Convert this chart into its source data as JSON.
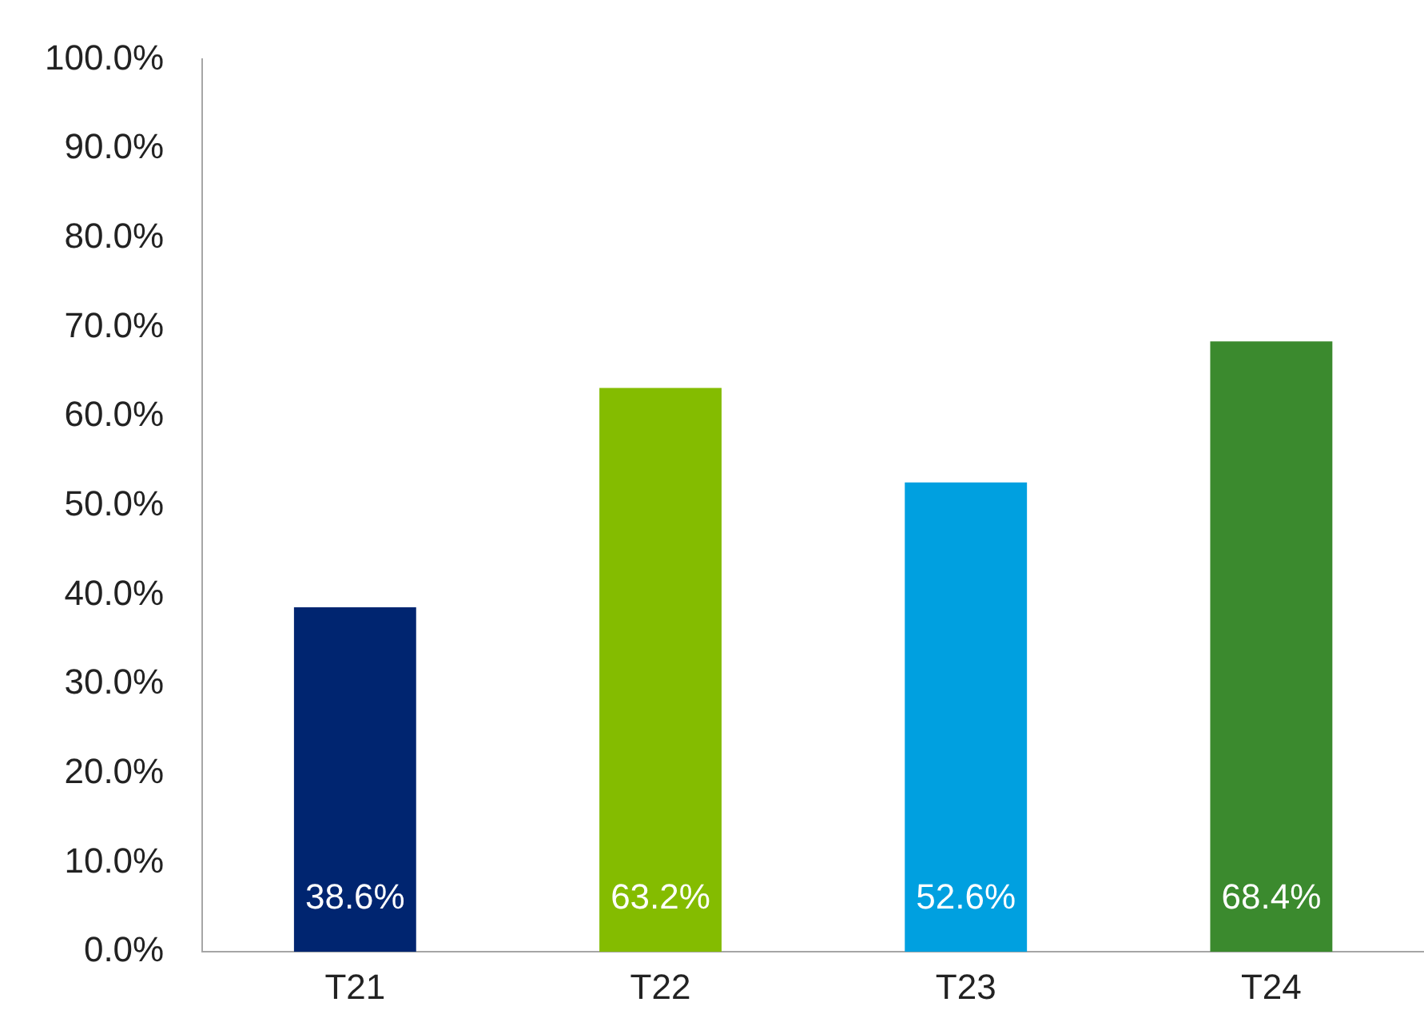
{
  "chart_data": {
    "type": "bar",
    "categories": [
      "T21",
      "T22",
      "T23",
      "T24"
    ],
    "values": [
      38.6,
      63.2,
      52.6,
      68.4
    ],
    "colors": [
      "#002570",
      "#84bc00",
      "#00a0e0",
      "#3b8a2e"
    ],
    "value_labels": [
      "38.6%",
      "63.2%",
      "52.6%",
      "68.4%"
    ],
    "ylim": [
      0,
      100
    ],
    "yticks": [
      {
        "value": 0,
        "label": "0.0%"
      },
      {
        "value": 10,
        "label": "10.0%"
      },
      {
        "value": 20,
        "label": "20.0%"
      },
      {
        "value": 30,
        "label": "30.0%"
      },
      {
        "value": 40,
        "label": "40.0%"
      },
      {
        "value": 50,
        "label": "50.0%"
      },
      {
        "value": 60,
        "label": "60.0%"
      },
      {
        "value": 70,
        "label": "70.0%"
      },
      {
        "value": 80,
        "label": "80.0%"
      },
      {
        "value": 90,
        "label": "90.0%"
      },
      {
        "value": 100,
        "label": "100.0%"
      }
    ],
    "grid": false,
    "legend": false
  }
}
